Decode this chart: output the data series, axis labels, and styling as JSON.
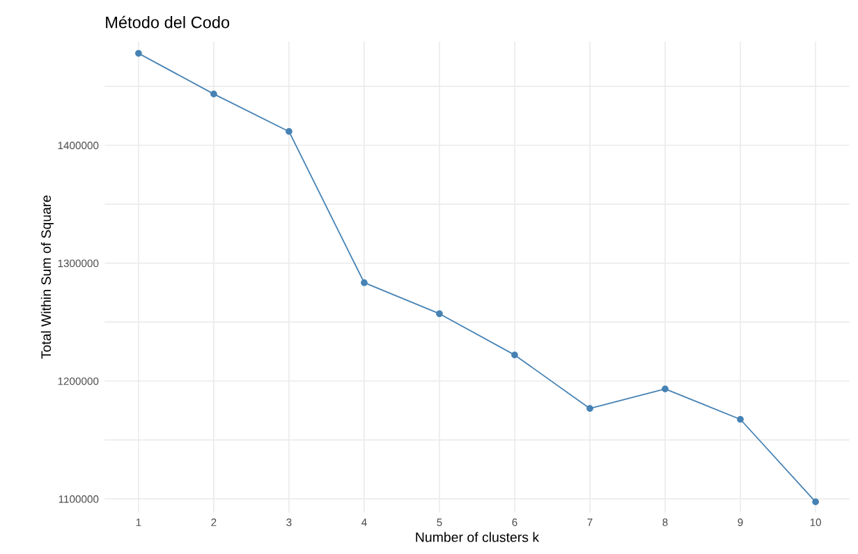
{
  "chart_data": {
    "type": "line",
    "title": "Método del Codo",
    "xlabel": "Number of clusters k",
    "ylabel": "Total Within Sum of Square",
    "categories": [
      "1",
      "2",
      "3",
      "4",
      "5",
      "6",
      "7",
      "8",
      "9",
      "10"
    ],
    "series": [
      {
        "color": "#4682b4",
        "values": [
          1478000,
          1443500,
          1411700,
          1283400,
          1257100,
          1222100,
          1176700,
          1193300,
          1167500,
          1097500
        ]
      }
    ],
    "ylim": [
      1088500,
      1488000
    ],
    "yticks": [
      1100000,
      {
        "value": 1150000,
        "label": null
      },
      1200000,
      {
        "value": 1250000,
        "label": null
      },
      1300000,
      {
        "value": 1350000,
        "label": null
      },
      1400000,
      {
        "value": 1450000,
        "label": null
      }
    ],
    "grid": true,
    "marker": "circle",
    "line_style": "solid"
  }
}
